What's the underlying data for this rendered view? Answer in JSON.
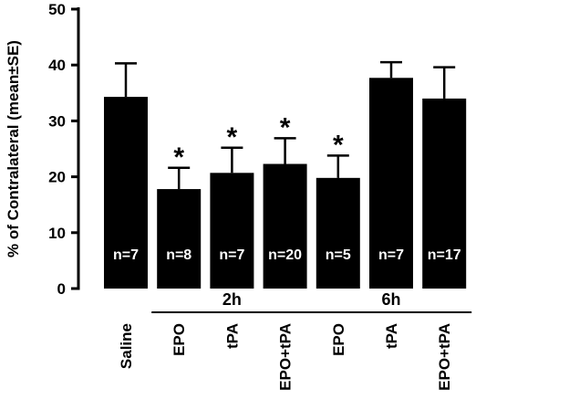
{
  "chart_data": {
    "type": "bar",
    "ylabel": "% of Contralateral (mean±SE)",
    "ylim": [
      0,
      50
    ],
    "yticks": [
      "0",
      "10",
      "20",
      "30",
      "40",
      "50"
    ],
    "categories": [
      "Saline",
      "EPO",
      "tPA",
      "EPO+tPA",
      "EPO",
      "tPA",
      "EPO+tPA"
    ],
    "values": [
      34.3,
      17.8,
      20.7,
      22.3,
      19.8,
      37.7,
      34.0
    ],
    "errors": [
      6.0,
      3.8,
      4.5,
      4.6,
      4.0,
      2.8,
      5.6
    ],
    "n_labels": [
      "n=7",
      "n=8",
      "n=7",
      "n=20",
      "n=5",
      "n=7",
      "n=17"
    ],
    "significant": [
      false,
      true,
      true,
      true,
      true,
      false,
      false
    ],
    "significance_mark": "*",
    "groups": [
      {
        "label": "2h",
        "categories": [
          1,
          2,
          3
        ]
      },
      {
        "label": "6h",
        "categories": [
          4,
          5,
          6
        ]
      }
    ],
    "bar_color": "#000000",
    "grid": false,
    "legend": "none"
  }
}
